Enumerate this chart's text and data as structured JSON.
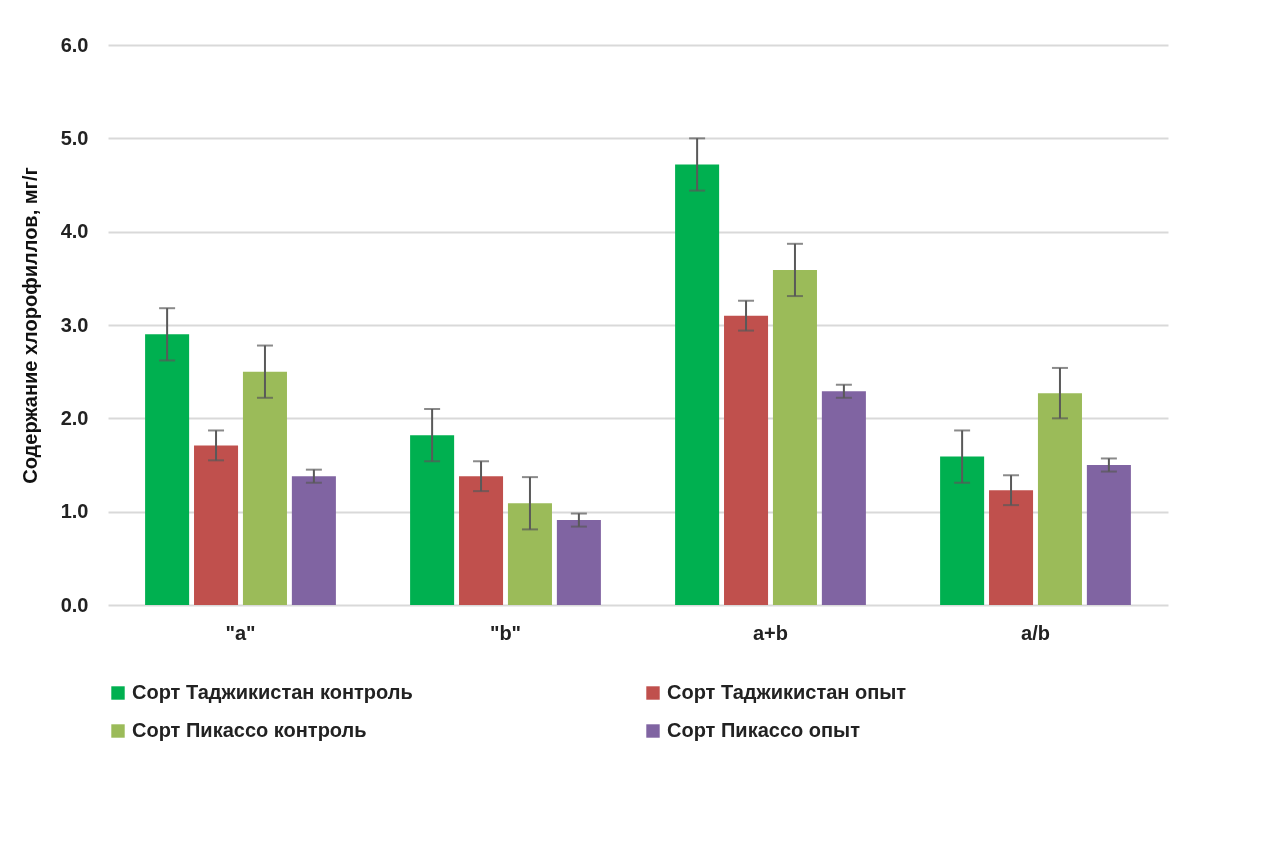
{
  "chart_data": {
    "type": "bar",
    "ylabel": "Содержание хлорофиллов, мг/г",
    "categories": [
      "\"a\"",
      "\"b\"",
      "a+b",
      "a/b"
    ],
    "series": [
      {
        "name": "Сорт Таджикистан контроль",
        "color": "#00b050",
        "values": [
          2.9,
          1.82,
          4.72,
          1.59
        ],
        "errors": [
          0.28,
          0.28,
          0.28,
          0.28
        ]
      },
      {
        "name": "Сорт Таджикистан опыт",
        "color": "#c0504d",
        "values": [
          1.71,
          1.38,
          3.1,
          1.23
        ],
        "errors": [
          0.16,
          0.16,
          0.16,
          0.16
        ]
      },
      {
        "name": "Сорт Пикассо контроль",
        "color": "#9bbb59",
        "values": [
          2.5,
          1.09,
          3.59,
          2.27
        ],
        "errors": [
          0.28,
          0.28,
          0.28,
          0.27
        ]
      },
      {
        "name": "Сорт Пикассо опыт",
        "color": "#8064a2",
        "values": [
          1.38,
          0.91,
          2.29,
          1.5
        ],
        "errors": [
          0.07,
          0.07,
          0.07,
          0.07
        ]
      }
    ],
    "ylim": [
      0,
      6
    ],
    "yticks": [
      {
        "value": 0,
        "label": "0.0"
      },
      {
        "value": 1,
        "label": "1.0"
      },
      {
        "value": 2,
        "label": "2.0"
      },
      {
        "value": 3,
        "label": "3.0"
      },
      {
        "value": 4,
        "label": "4.0"
      },
      {
        "value": 5,
        "label": "5.0"
      },
      {
        "value": 6,
        "label": "6.0"
      }
    ],
    "grid": "y",
    "legend": "bottom"
  }
}
